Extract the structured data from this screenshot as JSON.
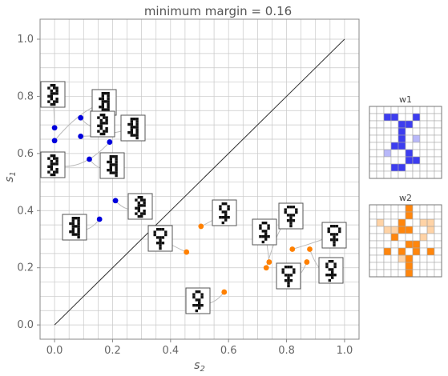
{
  "chart_data": {
    "type": "scatter",
    "title": "minimum margin = 0.16",
    "xlabel": "s",
    "xlabel_sub": "2",
    "ylabel": "s",
    "ylabel_sub": "1",
    "xlim": [
      -0.05,
      1.05
    ],
    "ylim": [
      -0.05,
      1.07
    ],
    "xticks": [
      "0.0",
      "0.2",
      "0.4",
      "0.6",
      "0.8",
      "1.0"
    ],
    "yticks": [
      "0.0",
      "0.2",
      "0.4",
      "0.6",
      "0.8",
      "1.0"
    ],
    "grid": true,
    "diagonal": [
      [
        0,
        0
      ],
      [
        1,
        1
      ]
    ],
    "series": [
      {
        "color": "#0000dd",
        "points": [
          [
            0.0,
            0.69
          ],
          [
            0.0,
            0.645
          ],
          [
            0.09,
            0.725
          ],
          [
            0.09,
            0.66
          ],
          [
            0.19,
            0.64
          ],
          [
            0.12,
            0.58
          ],
          [
            0.21,
            0.435
          ],
          [
            0.155,
            0.37
          ]
        ]
      },
      {
        "color": "#ff8000",
        "points": [
          [
            0.505,
            0.345
          ],
          [
            0.455,
            0.255
          ],
          [
            0.585,
            0.115
          ],
          [
            0.73,
            0.2
          ],
          [
            0.74,
            0.22
          ],
          [
            0.82,
            0.265
          ],
          [
            0.88,
            0.265
          ],
          [
            0.87,
            0.22
          ]
        ]
      }
    ]
  },
  "weights": [
    {
      "label": "w1",
      "color": "#3333ee"
    },
    {
      "label": "w2",
      "color": "#ff8000"
    }
  ],
  "colors": {
    "grid": "#c8c8c8",
    "frame": "#888888",
    "diagonal": "#333333"
  },
  "icons": [
    "digit-bitmap-icon",
    "digit-bitmap-icon",
    "digit-bitmap-icon",
    "digit-bitmap-icon",
    "digit-bitmap-icon",
    "digit-bitmap-icon",
    "digit-bitmap-icon",
    "digit-bitmap-icon",
    "female-symbol-bitmap-icon",
    "female-symbol-bitmap-icon",
    "female-symbol-bitmap-icon",
    "female-symbol-bitmap-icon",
    "female-symbol-bitmap-icon",
    "female-symbol-bitmap-icon",
    "female-symbol-bitmap-icon",
    "female-symbol-bitmap-icon"
  ]
}
